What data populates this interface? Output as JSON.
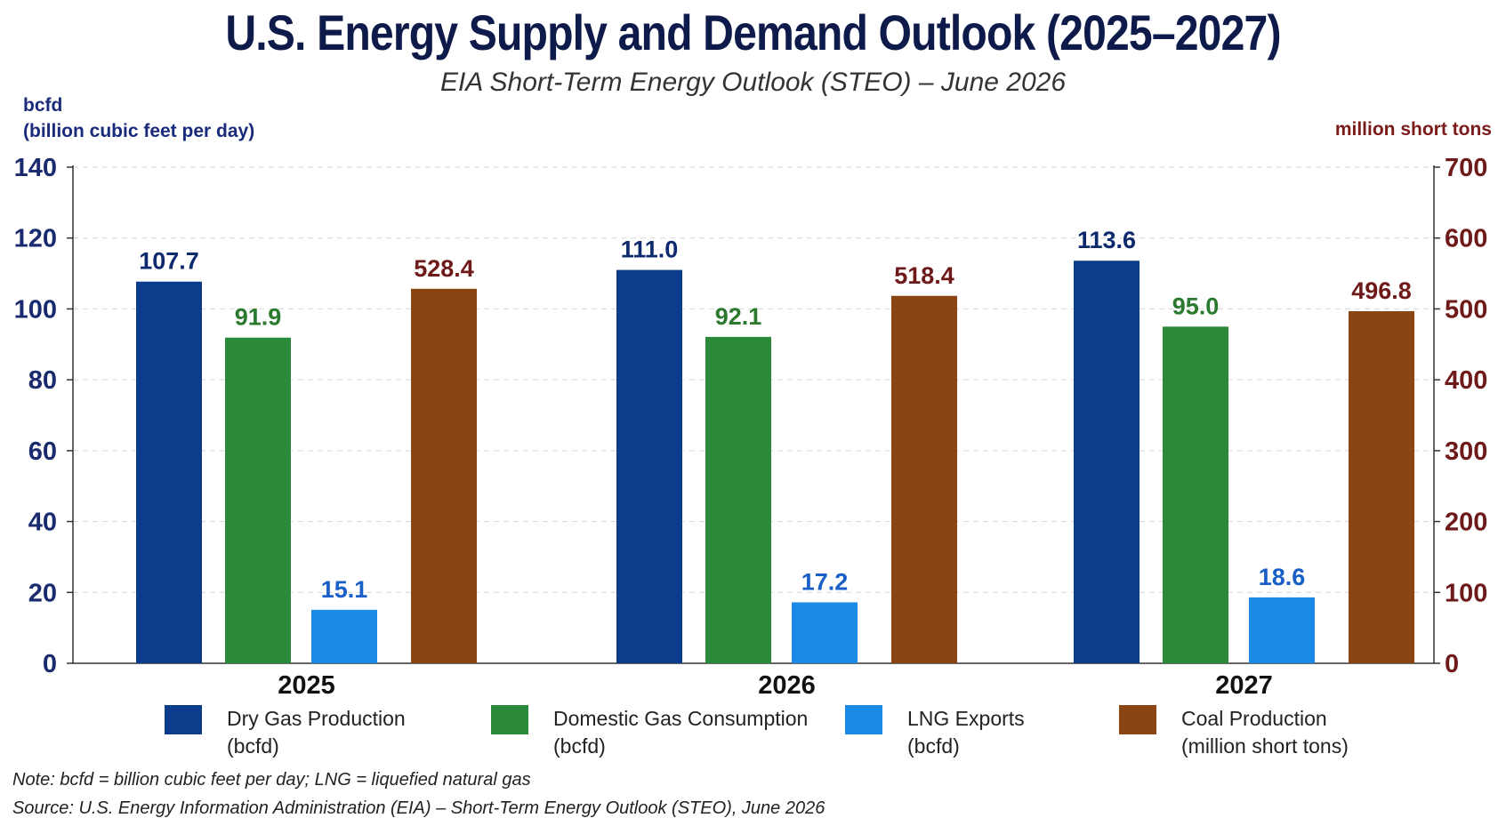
{
  "title": "U.S. Energy Supply and Demand Outlook (2025–2027)",
  "subtitle": "EIA Short-Term Energy Outlook (STEO) – June 2026",
  "left_axis_unit": {
    "line1": "bcfd",
    "line2": "(billion cubic feet per day)"
  },
  "right_axis_unit": "million short tons",
  "legend": [
    {
      "line1": "Dry Gas Production",
      "line2": "(bcfd)",
      "color": "#0c3d8c"
    },
    {
      "line1": "Domestic Gas Consumption",
      "line2": "(bcfd)",
      "color": "#2b8a3a"
    },
    {
      "line1": "LNG Exports",
      "line2": "(bcfd)",
      "color": "#1a8ae6"
    },
    {
      "line1": "Coal Production",
      "line2": "(million short tons)",
      "color": "#8b4513"
    }
  ],
  "note": "Note: bcfd = billion cubic feet per day; LNG = liquefied natural gas",
  "source": "Source: U.S. Energy Information Administration (EIA) – Short-Term Energy Outlook (STEO), June 2026",
  "chart_data": {
    "type": "bar",
    "title": "U.S. Energy Supply and Demand Outlook (2025–2027)",
    "categories": [
      "2025",
      "2026",
      "2027"
    ],
    "ylim_left": [
      0,
      140
    ],
    "yticks_left": [
      0,
      20,
      40,
      60,
      80,
      100,
      120,
      140
    ],
    "ylim_right": [
      0,
      700
    ],
    "yticks_right": [
      0,
      100,
      200,
      300,
      400,
      500,
      600,
      700
    ],
    "grid": "horizontal dashed",
    "legend_position": "bottom",
    "series": [
      {
        "name": "Dry Gas Production (bcfd)",
        "axis": "left",
        "color": "#0c3d8c",
        "label_color": "#0e2a6e",
        "values": [
          107.7,
          111.0,
          113.6
        ]
      },
      {
        "name": "Domestic Gas Consumption (bcfd)",
        "axis": "left",
        "color": "#2b8a3a",
        "label_color": "#2b7a2e",
        "values": [
          91.9,
          92.1,
          95.0
        ]
      },
      {
        "name": "LNG Exports (bcfd)",
        "axis": "left",
        "color": "#1a8ae6",
        "label_color": "#1a5fc8",
        "values": [
          15.1,
          17.2,
          18.6
        ]
      },
      {
        "name": "Coal Production (million short tons)",
        "axis": "right",
        "color": "#8b4513",
        "label_color": "#6e1a1a",
        "values": [
          528.4,
          518.4,
          496.8
        ]
      }
    ]
  }
}
